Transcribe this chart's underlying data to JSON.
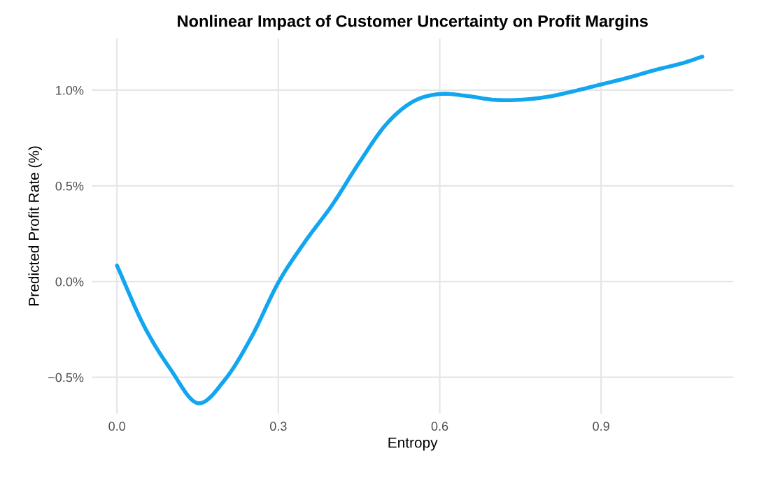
{
  "chart_data": {
    "type": "line",
    "title": "Nonlinear Impact of Customer Uncertainty on Profit Margins",
    "xlabel": "Entropy",
    "ylabel": "Predicted Profit Rate (%)",
    "x": [
      0.0,
      0.05,
      0.1,
      0.15,
      0.2,
      0.25,
      0.3,
      0.35,
      0.4,
      0.45,
      0.5,
      0.55,
      0.6,
      0.65,
      0.7,
      0.75,
      0.8,
      0.85,
      0.9,
      0.95,
      1.0,
      1.05,
      1.088
    ],
    "series": [
      {
        "color": "#13a6f0",
        "values": [
          0.084,
          -0.23,
          -0.46,
          -0.635,
          -0.515,
          -0.29,
          -0.005,
          0.21,
          0.4,
          0.62,
          0.82,
          0.94,
          0.98,
          0.97,
          0.95,
          0.95,
          0.965,
          0.995,
          1.03,
          1.065,
          1.105,
          1.14,
          1.175
        ]
      }
    ],
    "xlim": [
      -0.047,
      1.146
    ],
    "ylim": [
      -0.69,
      1.27
    ],
    "xticks": [
      {
        "value": 0.0,
        "label": "0.0"
      },
      0.3,
      0.6,
      0.9
    ],
    "yticks": [
      {
        "value": -0.5,
        "label": "−0.5%"
      },
      {
        "value": 0.0,
        "label": "0.0%"
      },
      {
        "value": 0.5,
        "label": "0.5%"
      },
      {
        "value": 1.0,
        "label": "1.0%"
      }
    ],
    "grid": true,
    "marker": "none",
    "line_style": "solid"
  }
}
